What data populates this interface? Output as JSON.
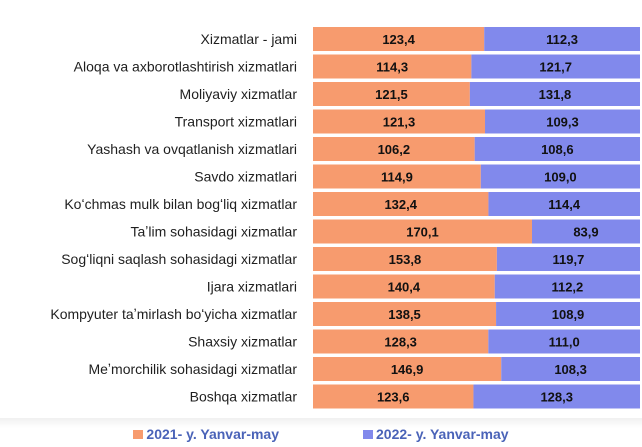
{
  "chart_data": {
    "type": "bar",
    "orientation": "horizontal",
    "stacked": true,
    "percent_stacked": true,
    "categories": [
      "Xizmatlar - jami",
      "Aloqa va axborotlashtirish xizmatlari",
      "Moliyaviy xizmatlar",
      "Transport xizmatlari",
      "Yashash va ovqatlanish xizmatlari",
      "Savdo xizmatlari",
      "Koʻchmas mulk bilan bogʻliq xizmatlar",
      "Taʼlim sohasidagi xizmatlar",
      "Sogʻliqni saqlash sohasidagi xizmatlar",
      "Ijara xizmatlari",
      "Kompyuter taʼmirlash boʻyicha xizmatlar",
      "Shaxsiy xizmatlar",
      "Meʼmorchilik sohasidagi xizmatlar",
      "Boshqa xizmatlar"
    ],
    "series": [
      {
        "name": "2021- y. Yanvar-may",
        "color": "#f79b6e",
        "values": [
          123.4,
          114.3,
          121.5,
          121.3,
          106.2,
          114.9,
          132.4,
          170.1,
          153.8,
          140.4,
          138.5,
          128.3,
          146.9,
          123.6
        ],
        "labels": [
          "123,4",
          "114,3",
          "121,5",
          "121,3",
          "106,2",
          "114,9",
          "132,4",
          "170,1",
          "153,8",
          "140,4",
          "138,5",
          "128,3",
          "146,9",
          "123,6"
        ]
      },
      {
        "name": "2022- y. Yanvar-may",
        "color": "#8189ec",
        "values": [
          112.3,
          121.7,
          131.8,
          109.3,
          108.6,
          109.0,
          114.4,
          83.9,
          119.7,
          112.2,
          108.9,
          111.0,
          108.3,
          128.3
        ],
        "labels": [
          "112,3",
          "121,7",
          "131,8",
          "109,3",
          "108,6",
          "109,0",
          "114,4",
          "83,9",
          "119,7",
          "112,2",
          "108,9",
          "111,0",
          "108,3",
          "128,3"
        ]
      }
    ],
    "legend_position": "bottom",
    "grid": false
  },
  "legend": {
    "items": [
      {
        "label": "2021- y. Yanvar-may",
        "color": "#f79b6e"
      },
      {
        "label": "2022- y. Yanvar-may",
        "color": "#8189ec"
      }
    ]
  }
}
